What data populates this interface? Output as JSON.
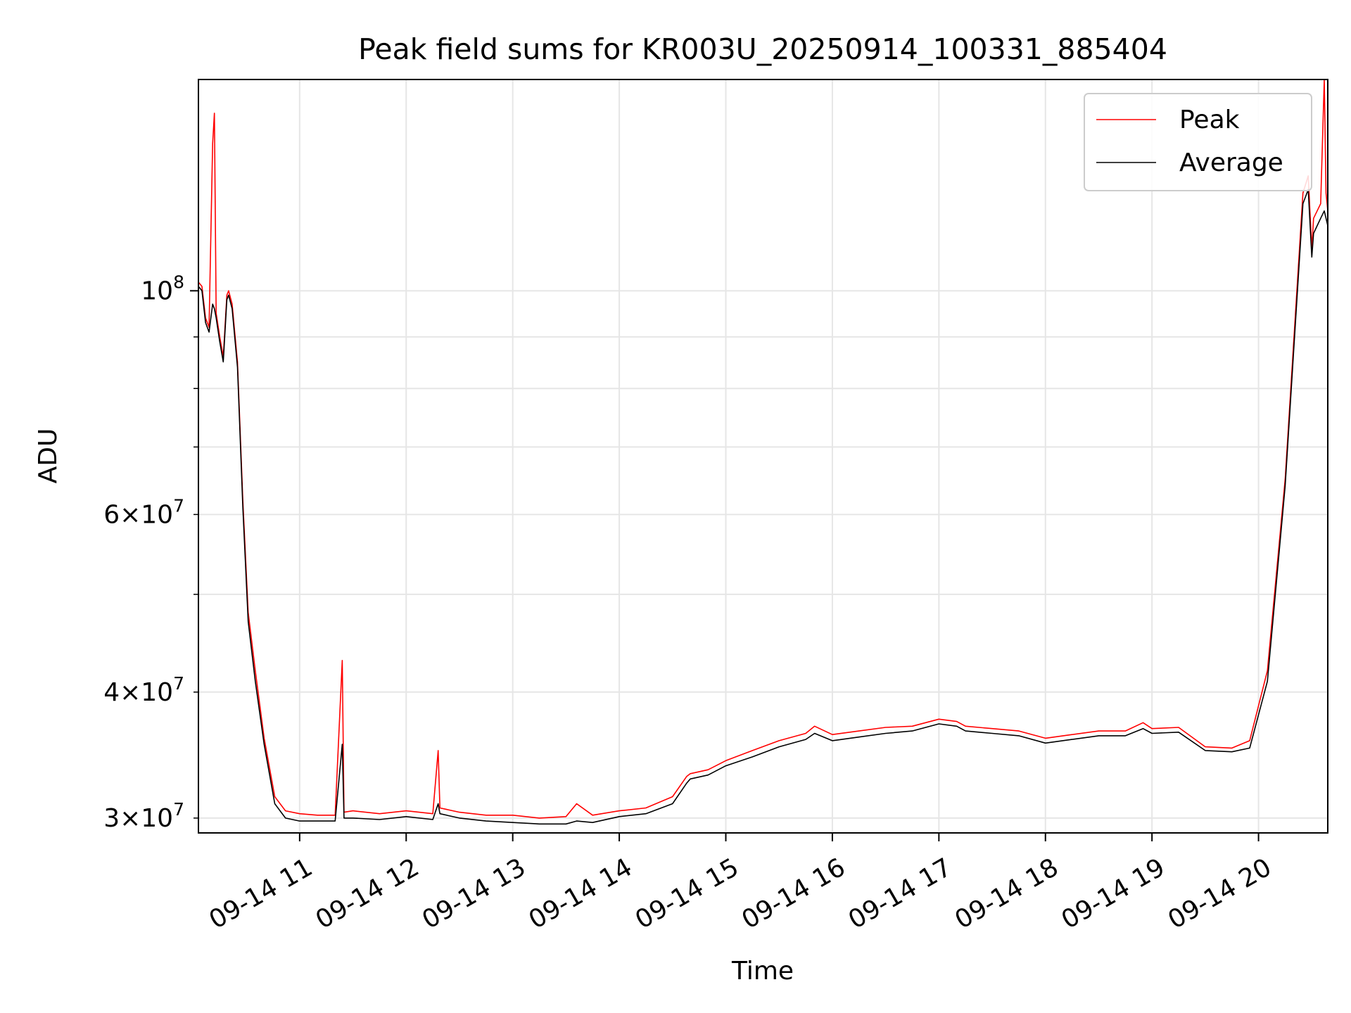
{
  "chart_data": {
    "type": "line",
    "title": "Peak field sums for KR003U_20250914_100331_885404",
    "xlabel": "Time",
    "ylabel": "ADU",
    "x_unit": "time of day on 2025-09-14 (HH:MM)",
    "xlim": [
      "10:03",
      "20:39"
    ],
    "ylim": [
      29000000,
      162000000
    ],
    "yscale": "log",
    "grid": true,
    "legend_position": "top-right",
    "x_ticks": [
      "11:00",
      "12:00",
      "13:00",
      "14:00",
      "15:00",
      "16:00",
      "17:00",
      "18:00",
      "19:00",
      "20:00"
    ],
    "x_tick_labels": [
      "09-14 11",
      "09-14 12",
      "09-14 13",
      "09-14 14",
      "09-14 15",
      "09-14 16",
      "09-14 17",
      "09-14 18",
      "09-14 19",
      "09-14 20"
    ],
    "y_major_ticks": [
      100000000
    ],
    "y_major_tick_labels": [
      {
        "base": "10",
        "exp": "8"
      }
    ],
    "y_minor_ticks": [
      30000000,
      40000000,
      50000000,
      60000000,
      70000000,
      80000000,
      90000000
    ],
    "y_minor_tick_labels": [
      {
        "value": 30000000,
        "mant": "3",
        "base": "10",
        "exp": "7"
      },
      {
        "value": 40000000,
        "mant": "4",
        "base": "10",
        "exp": "7"
      },
      {
        "value": 60000000,
        "mant": "6",
        "base": "10",
        "exp": "7"
      }
    ],
    "series": [
      {
        "name": "Peak",
        "color": "#ff0000",
        "x": [
          "10:03",
          "10:05",
          "10:07",
          "10:09",
          "10:11",
          "10:12",
          "10:13",
          "10:15",
          "10:17",
          "10:19",
          "10:20",
          "10:22",
          "10:25",
          "10:28",
          "10:31",
          "10:35",
          "10:40",
          "10:46",
          "10:52",
          "11:00",
          "11:10",
          "11:20",
          "11:24",
          "11:25",
          "11:30",
          "11:45",
          "12:00",
          "12:15",
          "12:18",
          "12:19",
          "12:30",
          "12:45",
          "13:00",
          "13:15",
          "13:30",
          "13:36",
          "13:45",
          "14:00",
          "14:15",
          "14:30",
          "14:38",
          "14:40",
          "14:50",
          "15:00",
          "15:15",
          "15:30",
          "15:45",
          "15:50",
          "16:00",
          "16:15",
          "16:30",
          "16:45",
          "17:00",
          "17:10",
          "17:15",
          "17:30",
          "17:45",
          "18:00",
          "18:15",
          "18:30",
          "18:45",
          "18:55",
          "19:00",
          "19:15",
          "19:30",
          "19:45",
          "19:55",
          "20:05",
          "20:15",
          "20:25",
          "20:28",
          "20:30",
          "20:31",
          "20:33",
          "20:35",
          "20:37",
          "20:38",
          "20:39"
        ],
        "y": [
          102000000,
          101000000,
          94000000,
          92000000,
          140000000,
          150000000,
          95000000,
          90000000,
          86000000,
          99000000,
          100000000,
          97000000,
          85000000,
          62000000,
          48000000,
          42000000,
          36000000,
          31500000,
          30500000,
          30300000,
          30200000,
          30200000,
          43000000,
          30400000,
          30500000,
          30300000,
          30500000,
          30300000,
          35000000,
          30700000,
          30400000,
          30200000,
          30200000,
          30000000,
          30100000,
          31000000,
          30200000,
          30500000,
          30700000,
          31500000,
          33000000,
          33200000,
          33500000,
          34200000,
          35000000,
          35800000,
          36400000,
          37000000,
          36300000,
          36600000,
          36900000,
          37000000,
          37600000,
          37400000,
          37000000,
          36800000,
          36600000,
          36000000,
          36300000,
          36600000,
          36600000,
          37300000,
          36800000,
          36900000,
          35300000,
          35200000,
          35800000,
          42000000,
          65000000,
          125000000,
          130000000,
          110000000,
          118000000,
          120000000,
          122000000,
          162000000,
          125000000,
          120000000
        ]
      },
      {
        "name": "Average",
        "color": "#000000",
        "x": [
          "10:03",
          "10:05",
          "10:07",
          "10:09",
          "10:11",
          "10:12",
          "10:13",
          "10:15",
          "10:17",
          "10:19",
          "10:20",
          "10:22",
          "10:25",
          "10:28",
          "10:31",
          "10:35",
          "10:40",
          "10:46",
          "10:52",
          "11:00",
          "11:10",
          "11:20",
          "11:24",
          "11:25",
          "11:30",
          "11:45",
          "12:00",
          "12:15",
          "12:18",
          "12:19",
          "12:30",
          "12:45",
          "13:00",
          "13:15",
          "13:30",
          "13:36",
          "13:45",
          "14:00",
          "14:15",
          "14:30",
          "14:38",
          "14:40",
          "14:50",
          "15:00",
          "15:15",
          "15:30",
          "15:45",
          "15:50",
          "16:00",
          "16:15",
          "16:30",
          "16:45",
          "17:00",
          "17:10",
          "17:15",
          "17:30",
          "17:45",
          "18:00",
          "18:15",
          "18:30",
          "18:45",
          "18:55",
          "19:00",
          "19:15",
          "19:30",
          "19:45",
          "19:55",
          "20:05",
          "20:15",
          "20:25",
          "20:28",
          "20:30",
          "20:31",
          "20:33",
          "20:35",
          "20:37",
          "20:38",
          "20:39"
        ],
        "y": [
          101000000,
          100000000,
          93000000,
          91000000,
          97000000,
          96000000,
          94000000,
          89000000,
          85000000,
          98000000,
          99000000,
          96000000,
          84000000,
          61000000,
          47000000,
          41000000,
          35500000,
          31000000,
          30000000,
          29800000,
          29800000,
          29800000,
          35500000,
          30000000,
          30000000,
          29900000,
          30100000,
          29900000,
          31000000,
          30300000,
          30000000,
          29800000,
          29700000,
          29600000,
          29600000,
          29800000,
          29700000,
          30100000,
          30300000,
          31000000,
          32500000,
          32800000,
          33100000,
          33800000,
          34500000,
          35300000,
          35900000,
          36400000,
          35800000,
          36100000,
          36400000,
          36600000,
          37200000,
          37000000,
          36600000,
          36400000,
          36200000,
          35600000,
          35900000,
          36200000,
          36200000,
          36800000,
          36400000,
          36500000,
          35000000,
          34900000,
          35200000,
          41000000,
          64000000,
          122000000,
          126000000,
          108000000,
          114000000,
          116000000,
          118000000,
          120000000,
          118000000,
          116000000
        ]
      }
    ]
  }
}
